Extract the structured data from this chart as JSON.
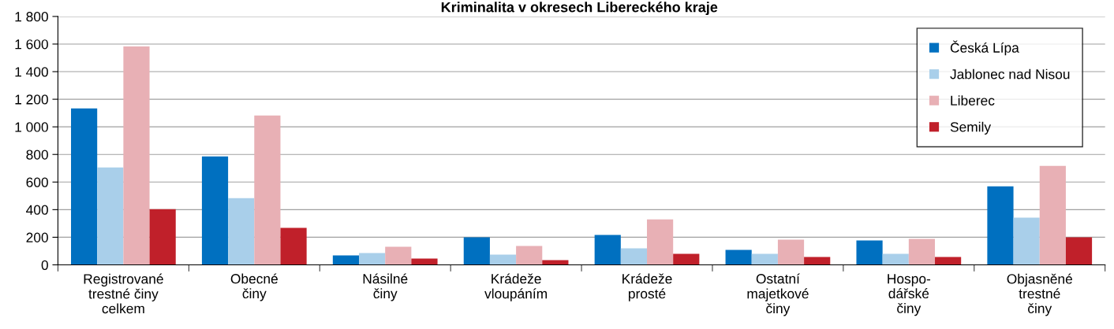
{
  "chart_data": {
    "type": "bar",
    "title": "Kriminalita v okresech Libereckého kraje",
    "categories": [
      "Registrované\ntrestné činy\ncelkem",
      "Obecné\nčiny",
      "Násilné\nčiny",
      "Krádeže\nvloupáním",
      "Krádeže\nprosté",
      "Ostatní\nmajetkové\nčiny",
      "Hospo-\ndářské\nčiny",
      "Objasněné\ntrestné\nčiny"
    ],
    "series": [
      {
        "name": "Česká Lípa",
        "color": "#0070c0",
        "values": [
          1133,
          786,
          68,
          199,
          216,
          108,
          177,
          569
        ]
      },
      {
        "name": "Jablonec nad Nisou",
        "color": "#a9cfea",
        "values": [
          706,
          484,
          85,
          74,
          120,
          80,
          80,
          342
        ]
      },
      {
        "name": "Liberec",
        "color": "#e8b0b5",
        "values": [
          1583,
          1082,
          131,
          137,
          330,
          182,
          188,
          717
        ]
      },
      {
        "name": "Semily",
        "color": "#c0202a",
        "values": [
          404,
          268,
          46,
          34,
          80,
          57,
          57,
          199
        ]
      }
    ],
    "ylim": [
      0,
      1800
    ],
    "yticks": [
      0,
      200,
      400,
      600,
      800,
      {
        "value": 1000,
        "label": "1 000"
      },
      {
        "value": 1200,
        "label": "1 200"
      },
      {
        "value": 1400,
        "label": "1 400"
      },
      {
        "value": 1600,
        "label": "1 600"
      },
      {
        "value": 1800,
        "label": "1 800"
      }
    ],
    "grid": "y",
    "legend": "top right"
  }
}
